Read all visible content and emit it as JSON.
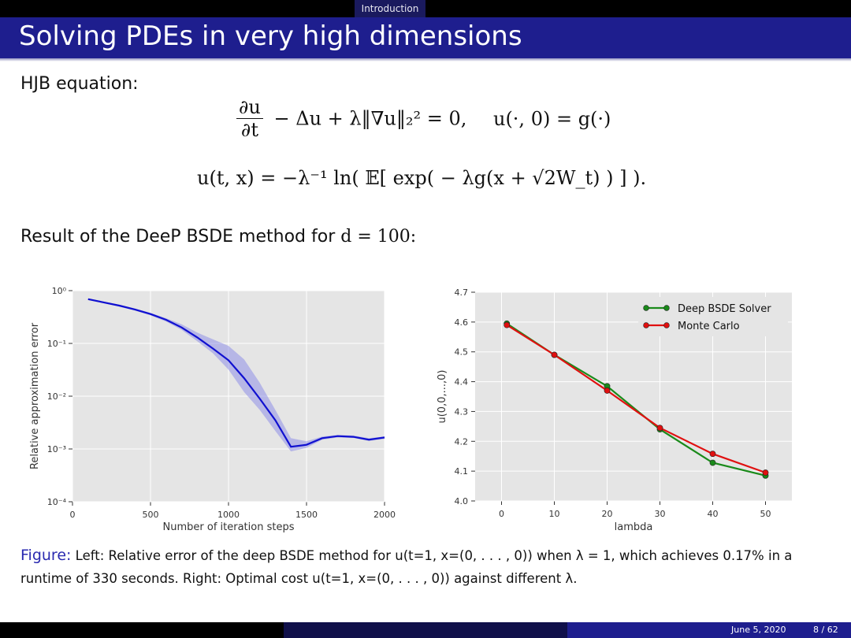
{
  "nav": {
    "section": "Introduction"
  },
  "slide": {
    "title": "Solving PDEs in very high dimensions",
    "hjb_label": "HJB equation:",
    "result_label": "Result of the DeeP BSDE method for",
    "result_math": "d = 100:"
  },
  "equations": {
    "eq1_main": "− Δu + λ‖∇u‖₂² = 0,",
    "eq1_frac_num": "∂u",
    "eq1_frac_den": "∂t",
    "eq1_init": "u(·, 0) = g(·)",
    "eq2": "u(t, x) = −λ⁻¹ ln( 𝔼[ exp( − λg(x + √2W_t) ) ] )."
  },
  "caption": {
    "label": "Figure:",
    "line1": "Left: Relative error of the deep BSDE method for u(t=1, x=(0, . . . , 0)) when λ = 1, which achieves 0.17% in a",
    "line2": "runtime of 330 seconds. Right: Optimal cost u(t=1, x=(0, . . . , 0)) against different λ."
  },
  "footer": {
    "date": "June 5, 2020",
    "page": "8 / 62"
  },
  "colors": {
    "nav_bg": "#000000",
    "title_bg": "#1e1e8e",
    "plot_bg": "#e5e5e5",
    "blue": "#1010d0",
    "green": "#1a8a1a",
    "red": "#e01010"
  },
  "chart_data": [
    {
      "type": "line",
      "xlabel": "Number of iteration steps",
      "ylabel": "Relative approximation error",
      "xlim": [
        0,
        2000
      ],
      "ylim_log10": [
        -4,
        0
      ],
      "y_scale": "log",
      "xticks": [
        "0",
        "500",
        "1000",
        "1500",
        "2000"
      ],
      "yticks": [
        "10⁰",
        "10⁻¹",
        "10⁻²",
        "10⁻³",
        "10⁻⁴"
      ],
      "grid": true,
      "series": [
        {
          "x": [
            100,
            200,
            300,
            400,
            500,
            600,
            700,
            800,
            900,
            1000,
            1100,
            1200,
            1300,
            1400,
            1500,
            1600,
            1700,
            1800,
            1900,
            2000
          ],
          "y": [
            0.69,
            0.6,
            0.52,
            0.44,
            0.36,
            0.28,
            0.2,
            0.13,
            0.08,
            0.048,
            0.022,
            0.009,
            0.0035,
            0.0011,
            0.0012,
            0.0016,
            0.00175,
            0.0017,
            0.0015,
            0.00165
          ],
          "y_lower": [
            0.67,
            0.58,
            0.5,
            0.42,
            0.34,
            0.26,
            0.18,
            0.11,
            0.065,
            0.032,
            0.012,
            0.0055,
            0.0022,
            0.0009,
            0.00105,
            0.0015,
            0.00165,
            0.00162,
            0.00142,
            0.00155
          ],
          "y_upper": [
            0.71,
            0.62,
            0.54,
            0.46,
            0.38,
            0.3,
            0.23,
            0.16,
            0.12,
            0.09,
            0.05,
            0.018,
            0.0055,
            0.0016,
            0.0014,
            0.00172,
            0.00185,
            0.0018,
            0.0016,
            0.00172
          ]
        }
      ]
    },
    {
      "type": "line",
      "xlabel": "lambda",
      "ylabel": "u(0,0,...,0)",
      "xlim": [
        -5,
        55
      ],
      "ylim": [
        4.0,
        4.7
      ],
      "xticks": [
        "0",
        "10",
        "20",
        "30",
        "40",
        "50"
      ],
      "yticks": [
        "4.0",
        "4.1",
        "4.2",
        "4.3",
        "4.4",
        "4.5",
        "4.6",
        "4.7"
      ],
      "grid": true,
      "legend": "top-right",
      "x": [
        1,
        10,
        20,
        30,
        40,
        50
      ],
      "series": [
        {
          "name": "Deep BSDE Solver",
          "values": [
            4.595,
            4.49,
            4.385,
            4.24,
            4.128,
            4.085
          ]
        },
        {
          "name": "Monte Carlo",
          "values": [
            4.59,
            4.49,
            4.37,
            4.245,
            4.158,
            4.095
          ]
        }
      ]
    }
  ]
}
